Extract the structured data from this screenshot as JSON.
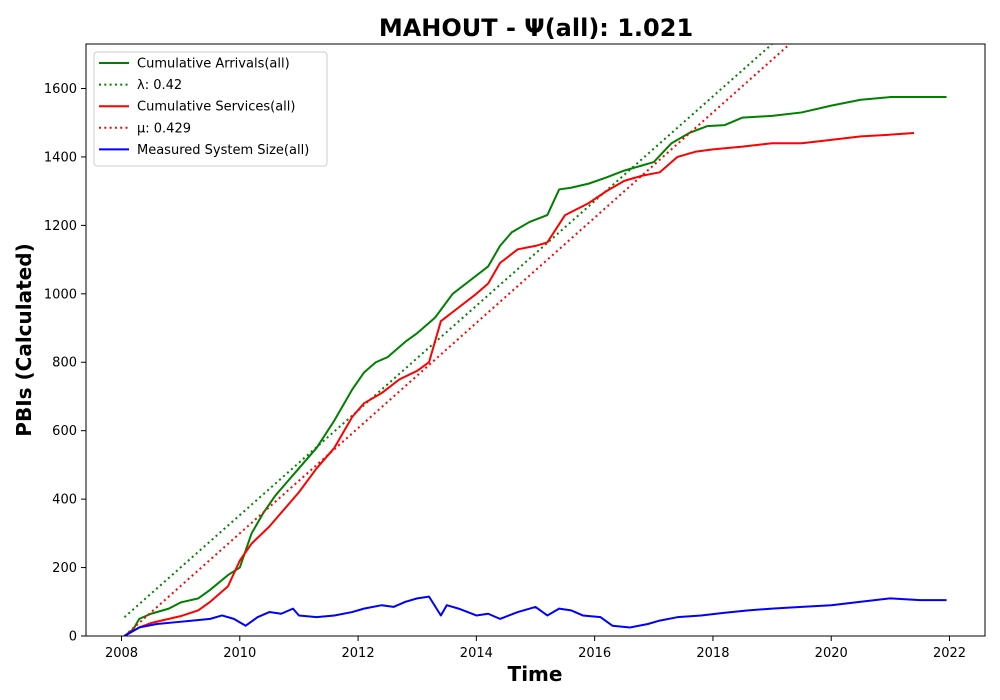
{
  "chart_data": {
    "type": "line",
    "title": "MAHOUT -  Ψ(all): 1.021",
    "xlabel": "Time",
    "ylabel": "PBIs (Calculated)",
    "xlim": [
      2007.4,
      2022.6
    ],
    "ylim": [
      0,
      1730
    ],
    "x_ticks": [
      2008,
      2010,
      2012,
      2014,
      2016,
      2018,
      2020,
      2022
    ],
    "y_ticks": [
      0,
      200,
      400,
      600,
      800,
      1000,
      1200,
      1400,
      1600
    ],
    "grid": false,
    "legend_position": "top-left",
    "series": [
      {
        "name": "Cumulative Arrivals(all)",
        "color": "#008000",
        "style": "solid",
        "x": [
          2008.05,
          2008.2,
          2008.3,
          2008.5,
          2008.8,
          2009.0,
          2009.3,
          2009.5,
          2009.8,
          2010.0,
          2010.1,
          2010.2,
          2010.4,
          2010.6,
          2010.8,
          2011.0,
          2011.3,
          2011.6,
          2011.9,
          2012.1,
          2012.3,
          2012.5,
          2012.8,
          2013.0,
          2013.1,
          2013.3,
          2013.6,
          2013.9,
          2014.2,
          2014.4,
          2014.6,
          2014.9,
          2015.2,
          2015.4,
          2015.6,
          2015.9,
          2016.2,
          2016.5,
          2016.8,
          2017.0,
          2017.3,
          2017.6,
          2017.9,
          2018.2,
          2018.5,
          2019.0,
          2019.5,
          2020.0,
          2020.5,
          2021.0,
          2021.5,
          2021.95
        ],
        "y": [
          0,
          20,
          50,
          65,
          80,
          98,
          110,
          135,
          178,
          200,
          250,
          300,
          360,
          410,
          450,
          490,
          550,
          630,
          720,
          770,
          800,
          815,
          860,
          885,
          900,
          930,
          1000,
          1040,
          1080,
          1140,
          1180,
          1210,
          1230,
          1305,
          1310,
          1322,
          1340,
          1360,
          1375,
          1385,
          1440,
          1470,
          1490,
          1493,
          1515,
          1520,
          1530,
          1550,
          1567,
          1575,
          1575,
          1575
        ]
      },
      {
        "name": "λ: 0.42",
        "color": "#008000",
        "style": "dotted",
        "x": [
          2008.05,
          2019.0
        ],
        "y": [
          55,
          1730
        ]
      },
      {
        "name": "Cumulative Services(all)",
        "color": "#ff0000",
        "style": "solid",
        "x": [
          2008.05,
          2008.3,
          2008.5,
          2008.8,
          2009.0,
          2009.3,
          2009.5,
          2009.8,
          2010.0,
          2010.2,
          2010.5,
          2010.8,
          2011.0,
          2011.3,
          2011.6,
          2011.9,
          2012.1,
          2012.4,
          2012.7,
          2013.0,
          2013.2,
          2013.4,
          2013.7,
          2014.0,
          2014.2,
          2014.4,
          2014.7,
          2015.0,
          2015.2,
          2015.5,
          2015.9,
          2016.2,
          2016.5,
          2016.8,
          2017.1,
          2017.4,
          2017.7,
          2018.0,
          2018.5,
          2019.0,
          2019.5,
          2020.0,
          2020.5,
          2021.0,
          2021.4
        ],
        "y": [
          0,
          25,
          38,
          50,
          58,
          75,
          100,
          145,
          220,
          270,
          320,
          380,
          420,
          490,
          550,
          640,
          680,
          710,
          750,
          775,
          800,
          920,
          960,
          1000,
          1030,
          1090,
          1130,
          1140,
          1150,
          1230,
          1265,
          1300,
          1330,
          1345,
          1355,
          1400,
          1415,
          1422,
          1430,
          1440,
          1440,
          1450,
          1460,
          1465,
          1470
        ]
      },
      {
        "name": "μ: 0.429",
        "color": "#ff0000",
        "style": "dotted",
        "x": [
          2008.05,
          2019.3
        ],
        "y": [
          0,
          1730
        ]
      },
      {
        "name": "Measured System Size(all)",
        "color": "#0000ff",
        "style": "solid",
        "x": [
          2008.05,
          2008.3,
          2008.6,
          2008.9,
          2009.2,
          2009.5,
          2009.7,
          2009.9,
          2010.1,
          2010.3,
          2010.5,
          2010.7,
          2010.9,
          2011.0,
          2011.3,
          2011.6,
          2011.9,
          2012.1,
          2012.4,
          2012.6,
          2012.8,
          2013.0,
          2013.2,
          2013.4,
          2013.5,
          2013.7,
          2014.0,
          2014.2,
          2014.4,
          2014.7,
          2015.0,
          2015.2,
          2015.4,
          2015.6,
          2015.8,
          2016.1,
          2016.3,
          2016.6,
          2016.9,
          2017.1,
          2017.4,
          2017.8,
          2018.2,
          2018.6,
          2019.0,
          2019.5,
          2020.0,
          2020.5,
          2021.0,
          2021.5,
          2021.95
        ],
        "y": [
          0,
          25,
          35,
          40,
          45,
          50,
          60,
          50,
          30,
          55,
          70,
          65,
          80,
          60,
          55,
          60,
          70,
          80,
          90,
          85,
          100,
          110,
          115,
          60,
          90,
          80,
          60,
          65,
          50,
          70,
          85,
          60,
          80,
          75,
          60,
          55,
          30,
          25,
          35,
          45,
          55,
          60,
          68,
          75,
          80,
          85,
          90,
          100,
          110,
          105,
          105
        ]
      }
    ]
  }
}
